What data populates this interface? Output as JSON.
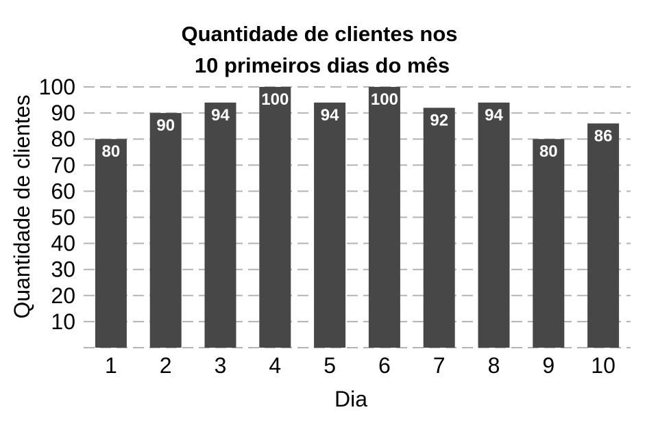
{
  "chart_data": {
    "type": "bar",
    "title_lines": [
      "Quantidade de clientes nos",
      "10 primeiros dias do mês"
    ],
    "xlabel": "Dia",
    "ylabel": "Quantidade de clientes",
    "categories": [
      "1",
      "2",
      "3",
      "4",
      "5",
      "6",
      "7",
      "8",
      "9",
      "10"
    ],
    "values": [
      80,
      90,
      94,
      100,
      94,
      100,
      92,
      94,
      80,
      86
    ],
    "yticks": [
      10,
      20,
      30,
      40,
      50,
      60,
      70,
      80,
      90,
      100
    ],
    "ylim": [
      0,
      100
    ],
    "grid": true,
    "bar_color": "#474747",
    "label_color": "#ffffff"
  }
}
